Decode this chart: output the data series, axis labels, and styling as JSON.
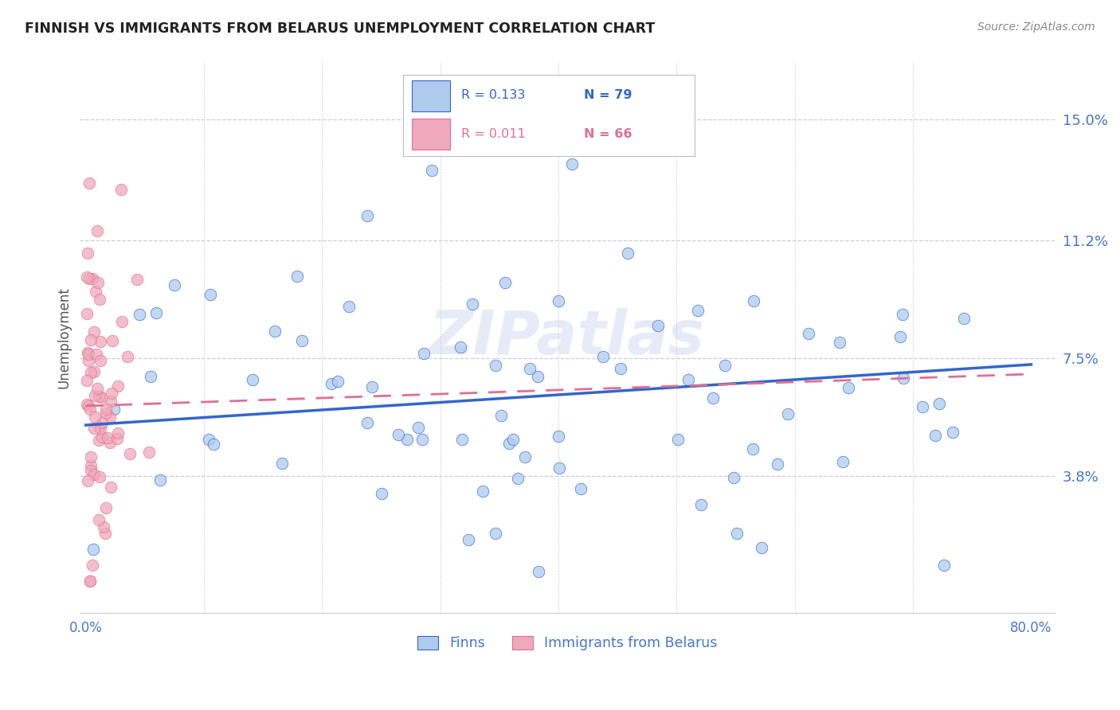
{
  "title": "FINNISH VS IMMIGRANTS FROM BELARUS UNEMPLOYMENT CORRELATION CHART",
  "source": "Source: ZipAtlas.com",
  "ylabel": "Unemployment",
  "ytick_labels": [
    "15.0%",
    "11.2%",
    "7.5%",
    "3.8%"
  ],
  "ytick_values": [
    0.15,
    0.112,
    0.075,
    0.038
  ],
  "ylim": [
    -0.005,
    0.168
  ],
  "xlim": [
    -0.005,
    0.82
  ],
  "color_finns": "#AECBEE",
  "color_belarus": "#F0A8BC",
  "color_line_finns": "#3366CC",
  "color_line_belarus": "#E07090",
  "color_title": "#222222",
  "color_source": "#888888",
  "color_ytick": "#4477CC",
  "color_xtick": "#4477CC",
  "color_grid": "#CCCCDD",
  "background_color": "#FFFFFF",
  "finns_line_y0": 0.054,
  "finns_line_y1": 0.073,
  "belarus_line_y0": 0.06,
  "belarus_line_y1": 0.07,
  "watermark": "ZIPatlas",
  "legend_r1": "R = 0.133",
  "legend_n1": "N = 79",
  "legend_r2": "R = 0.011",
  "legend_n2": "N = 66"
}
